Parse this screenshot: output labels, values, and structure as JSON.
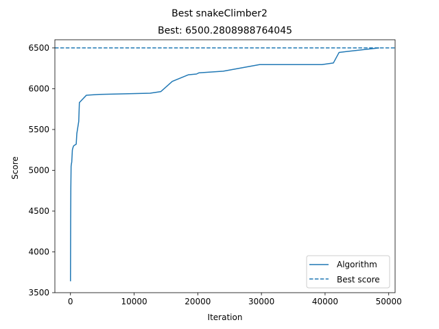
{
  "chart_data": {
    "type": "line",
    "suptitle": "Best snakeClimber2",
    "title": "Best: 6500.2808988764045",
    "xlabel": "Iteration",
    "ylabel": "Score",
    "xlim": [
      -2450,
      51000
    ],
    "ylim": [
      3500,
      6600
    ],
    "xticks": [
      0,
      10000,
      20000,
      30000,
      40000,
      50000
    ],
    "xtick_labels": [
      "0",
      "10000",
      "20000",
      "30000",
      "40000",
      "50000"
    ],
    "yticks": [
      3500,
      4000,
      4500,
      5000,
      5500,
      6000,
      6500
    ],
    "ytick_labels": [
      "3500",
      "4000",
      "4500",
      "5000",
      "5500",
      "6000",
      "6500"
    ],
    "grid": false,
    "legend_position": "lower-right",
    "series": [
      {
        "name": "Algorithm",
        "style": "solid",
        "color": "#1f77b4",
        "x": [
          0,
          30,
          60,
          100,
          150,
          200,
          300,
          400,
          500,
          700,
          900,
          1000,
          1100,
          1200,
          1300,
          1400,
          2500,
          4500,
          12500,
          14200,
          16000,
          18500,
          19800,
          20200,
          24000,
          29700,
          39500,
          41300,
          42200,
          48500
        ],
        "y": [
          3640,
          4400,
          4800,
          5050,
          5080,
          5100,
          5250,
          5280,
          5300,
          5310,
          5320,
          5450,
          5500,
          5550,
          5600,
          5830,
          5920,
          5930,
          5945,
          5965,
          6090,
          6170,
          6180,
          6195,
          6215,
          6295,
          6295,
          6315,
          6445,
          6500
        ]
      },
      {
        "name": "Best score",
        "style": "dashed",
        "color": "#1f77b4",
        "y": 6500.2808988764045
      }
    ]
  }
}
